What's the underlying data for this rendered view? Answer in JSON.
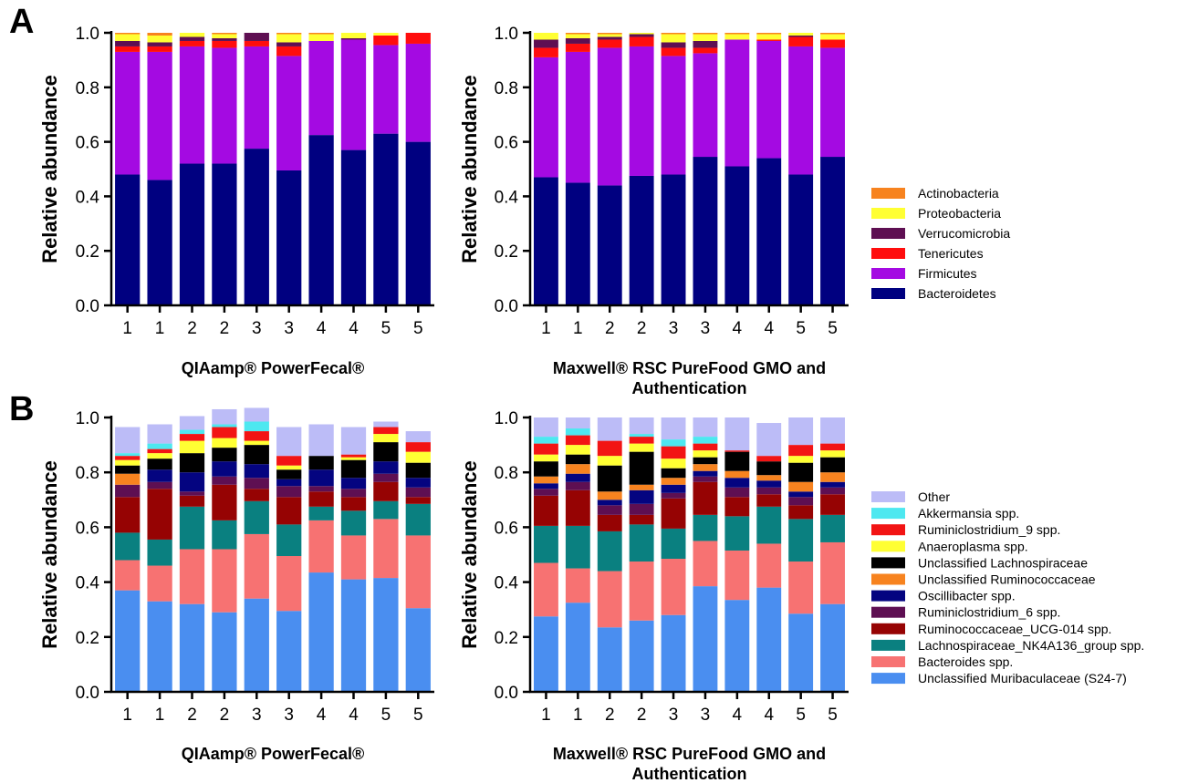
{
  "panels": [
    {
      "letter": "A",
      "legend": {
        "items": [
          {
            "label": "Actinobacteria",
            "color": "#f7831f"
          },
          {
            "label": "Proteobacteria",
            "color": "#ffff33"
          },
          {
            "label": "Verrucomicrobia",
            "color": "#5e0f52"
          },
          {
            "label": "Tenericutes",
            "color": "#ff0d0d"
          },
          {
            "label": "Firmicutes",
            "color": "#a40ae2"
          },
          {
            "label": "Bacteroidetes",
            "color": "#000080"
          }
        ]
      }
    },
    {
      "letter": "B",
      "legend": {
        "items": [
          {
            "label": "Other",
            "color": "#bcbcf7"
          },
          {
            "label": "Akkermansia spp.",
            "color": "#4de8f0"
          },
          {
            "label": "Ruminiclostridium_9 spp.",
            "color": "#f21414"
          },
          {
            "label": "Anaeroplasma spp.",
            "color": "#ffff33"
          },
          {
            "label": "Unclassified Lachnospiraceae",
            "color": "#000000"
          },
          {
            "label": "Unclassified Ruminococcaceae",
            "color": "#f7831f"
          },
          {
            "label": "Oscillibacter spp.",
            "color": "#040480"
          },
          {
            "label": "Ruminiclostridium_6 spp.",
            "color": "#5e0f52"
          },
          {
            "label": "Ruminococcaceae_UCG-014 spp.",
            "color": "#960303"
          },
          {
            "label": "Lachnospiraceae_NK4A136_group spp.",
            "color": "#0a8080"
          },
          {
            "label": "Bacteroides spp.",
            "color": "#f77272"
          },
          {
            "label": "Unclassified Muribaculaceae (S24-7)",
            "color": "#4a8ef0"
          }
        ]
      }
    }
  ],
  "chart_data": [
    {
      "type": "bar",
      "stacked": true,
      "panel": 0,
      "title": "",
      "xlabel": "QIAamp® PowerFecal®",
      "ylabel": "Relative abundance",
      "ylim": [
        0,
        1.0
      ],
      "yticks": [
        "0.0",
        "0.2",
        "0.4",
        "0.6",
        "0.8",
        "1.0"
      ],
      "categories": [
        "1",
        "1",
        "2",
        "2",
        "3",
        "3",
        "4",
        "4",
        "5",
        "5"
      ],
      "series": [
        {
          "name": "Bacteroidetes",
          "values": [
            0.48,
            0.46,
            0.52,
            0.52,
            0.575,
            0.495,
            0.625,
            0.57,
            0.63,
            0.6
          ]
        },
        {
          "name": "Firmicutes",
          "values": [
            0.45,
            0.47,
            0.43,
            0.425,
            0.375,
            0.42,
            0.345,
            0.405,
            0.325,
            0.36
          ]
        },
        {
          "name": "Tenericutes",
          "values": [
            0.02,
            0.02,
            0.02,
            0.025,
            0.02,
            0.035,
            0.0,
            0.0,
            0.035,
            0.04
          ]
        },
        {
          "name": "Verrucomicrobia",
          "values": [
            0.02,
            0.015,
            0.015,
            0.01,
            0.03,
            0.015,
            0.0,
            0.005,
            0.0,
            0.0
          ]
        },
        {
          "name": "Proteobacteria",
          "values": [
            0.025,
            0.025,
            0.015,
            0.015,
            0.0,
            0.03,
            0.025,
            0.02,
            0.01,
            0.0
          ]
        },
        {
          "name": "Actinobacteria",
          "values": [
            0.005,
            0.01,
            0.0,
            0.005,
            0.0,
            0.005,
            0.005,
            0.0,
            0.0,
            0.0
          ]
        }
      ]
    },
    {
      "type": "bar",
      "stacked": true,
      "panel": 0,
      "title": "",
      "xlabel": "Maxwell® RSC PureFood GMO and Authentication",
      "xlabel_lines": [
        "Maxwell® RSC PureFood GMO and",
        "Authentication"
      ],
      "ylabel": "Relative abundance",
      "ylim": [
        0,
        1.0
      ],
      "yticks": [
        "0.0",
        "0.2",
        "0.4",
        "0.6",
        "0.8",
        "1.0"
      ],
      "categories": [
        "1",
        "1",
        "2",
        "2",
        "3",
        "3",
        "4",
        "4",
        "5",
        "5"
      ],
      "series": [
        {
          "name": "Bacteroidetes",
          "values": [
            0.47,
            0.45,
            0.44,
            0.475,
            0.48,
            0.545,
            0.51,
            0.54,
            0.48,
            0.545
          ]
        },
        {
          "name": "Firmicutes",
          "values": [
            0.44,
            0.48,
            0.505,
            0.475,
            0.435,
            0.38,
            0.465,
            0.43,
            0.47,
            0.4
          ]
        },
        {
          "name": "Tenericutes",
          "values": [
            0.035,
            0.03,
            0.03,
            0.035,
            0.03,
            0.02,
            0.0,
            0.005,
            0.035,
            0.03
          ]
        },
        {
          "name": "Verrucomicrobia",
          "values": [
            0.03,
            0.02,
            0.01,
            0.01,
            0.02,
            0.025,
            0.0,
            0.0,
            0.005,
            0.0
          ]
        },
        {
          "name": "Proteobacteria",
          "values": [
            0.025,
            0.015,
            0.01,
            0.005,
            0.03,
            0.025,
            0.02,
            0.02,
            0.01,
            0.02
          ]
        },
        {
          "name": "Actinobacteria",
          "values": [
            0.0,
            0.005,
            0.005,
            0.0,
            0.005,
            0.005,
            0.005,
            0.005,
            0.0,
            0.005
          ]
        }
      ]
    },
    {
      "type": "bar",
      "stacked": true,
      "panel": 1,
      "title": "",
      "xlabel": "QIAamp® PowerFecal®",
      "ylabel": "Relative abundance",
      "ylim": [
        0,
        1.0
      ],
      "yticks": [
        "0.0",
        "0.2",
        "0.4",
        "0.6",
        "0.8",
        "1.0"
      ],
      "categories": [
        "1",
        "1",
        "2",
        "2",
        "3",
        "3",
        "4",
        "4",
        "5",
        "5"
      ],
      "series": [
        {
          "name": "Unclassified Muribaculaceae (S24-7)",
          "values": [
            0.37,
            0.33,
            0.32,
            0.29,
            0.34,
            0.295,
            0.435,
            0.41,
            0.415,
            0.305
          ]
        },
        {
          "name": "Bacteroides spp.",
          "values": [
            0.11,
            0.13,
            0.2,
            0.23,
            0.235,
            0.2,
            0.19,
            0.16,
            0.215,
            0.265
          ]
        },
        {
          "name": "Lachnospiraceae_NK4A136_group spp.",
          "values": [
            0.1,
            0.095,
            0.155,
            0.105,
            0.12,
            0.115,
            0.05,
            0.09,
            0.065,
            0.115
          ]
        },
        {
          "name": "Ruminococcaceae_UCG-014 spp.",
          "values": [
            0.13,
            0.185,
            0.04,
            0.13,
            0.045,
            0.1,
            0.055,
            0.05,
            0.07,
            0.025
          ]
        },
        {
          "name": "Ruminiclostridium_6 spp.",
          "values": [
            0.045,
            0.025,
            0.015,
            0.03,
            0.04,
            0.04,
            0.02,
            0.03,
            0.03,
            0.035
          ]
        },
        {
          "name": "Oscillibacter spp.",
          "values": [
            0.0,
            0.045,
            0.07,
            0.055,
            0.05,
            0.025,
            0.06,
            0.04,
            0.045,
            0.035
          ]
        },
        {
          "name": "Unclassified Ruminococcaceae",
          "values": [
            0.04,
            0.0,
            0.0,
            0.0,
            0.0,
            0.0,
            0.0,
            0.0,
            0.0,
            0.0
          ]
        },
        {
          "name": "Unclassified Lachnospiraceae",
          "values": [
            0.03,
            0.04,
            0.07,
            0.05,
            0.07,
            0.035,
            0.05,
            0.065,
            0.07,
            0.055
          ]
        },
        {
          "name": "Anaeroplasma spp.",
          "values": [
            0.02,
            0.02,
            0.045,
            0.035,
            0.015,
            0.015,
            0.0,
            0.01,
            0.03,
            0.04
          ]
        },
        {
          "name": "Ruminiclostridium_9 spp.",
          "values": [
            0.015,
            0.015,
            0.025,
            0.04,
            0.035,
            0.035,
            0.0,
            0.01,
            0.025,
            0.035
          ]
        },
        {
          "name": "Akkermansia spp.",
          "values": [
            0.01,
            0.02,
            0.015,
            0.01,
            0.035,
            0.0,
            0.0,
            0.0,
            0.0,
            0.0
          ]
        },
        {
          "name": "Other",
          "values": [
            0.095,
            0.07,
            0.05,
            0.055,
            0.05,
            0.105,
            0.115,
            0.1,
            0.02,
            0.04
          ]
        }
      ]
    },
    {
      "type": "bar",
      "stacked": true,
      "panel": 1,
      "title": "",
      "xlabel": "Maxwell® RSC PureFood GMO and Authentication",
      "xlabel_lines": [
        "Maxwell® RSC PureFood GMO and",
        "Authentication"
      ],
      "ylabel": "Relative abundance",
      "ylim": [
        0,
        1.0
      ],
      "yticks": [
        "0.0",
        "0.2",
        "0.4",
        "0.6",
        "0.8",
        "1.0"
      ],
      "categories": [
        "1",
        "1",
        "2",
        "2",
        "3",
        "3",
        "4",
        "4",
        "5",
        "5"
      ],
      "series": [
        {
          "name": "Unclassified Muribaculaceae (S24-7)",
          "values": [
            0.275,
            0.325,
            0.235,
            0.26,
            0.28,
            0.385,
            0.335,
            0.38,
            0.285,
            0.32
          ]
        },
        {
          "name": "Bacteroides spp.",
          "values": [
            0.195,
            0.125,
            0.205,
            0.215,
            0.205,
            0.165,
            0.18,
            0.16,
            0.19,
            0.225
          ]
        },
        {
          "name": "Lachnospiraceae_NK4A136_group spp.",
          "values": [
            0.135,
            0.155,
            0.145,
            0.135,
            0.11,
            0.095,
            0.125,
            0.135,
            0.155,
            0.1
          ]
        },
        {
          "name": "Ruminococcaceae_UCG-014 spp.",
          "values": [
            0.11,
            0.13,
            0.06,
            0.035,
            0.11,
            0.12,
            0.07,
            0.045,
            0.05,
            0.075
          ]
        },
        {
          "name": "Ruminiclostridium_6 spp.",
          "values": [
            0.025,
            0.03,
            0.035,
            0.04,
            0.02,
            0.02,
            0.035,
            0.025,
            0.03,
            0.025
          ]
        },
        {
          "name": "Oscillibacter spp.",
          "values": [
            0.02,
            0.03,
            0.02,
            0.05,
            0.03,
            0.02,
            0.035,
            0.025,
            0.02,
            0.02
          ]
        },
        {
          "name": "Unclassified Ruminococcaceae",
          "values": [
            0.025,
            0.035,
            0.03,
            0.02,
            0.025,
            0.025,
            0.025,
            0.02,
            0.035,
            0.035
          ]
        },
        {
          "name": "Unclassified Lachnospiraceae",
          "values": [
            0.055,
            0.035,
            0.095,
            0.12,
            0.035,
            0.025,
            0.07,
            0.05,
            0.07,
            0.055
          ]
        },
        {
          "name": "Anaeroplasma spp.",
          "values": [
            0.025,
            0.035,
            0.035,
            0.03,
            0.035,
            0.025,
            0.0,
            0.0,
            0.025,
            0.025
          ]
        },
        {
          "name": "Ruminiclostridium_9 spp.",
          "values": [
            0.04,
            0.035,
            0.055,
            0.025,
            0.045,
            0.025,
            0.005,
            0.02,
            0.04,
            0.025
          ]
        },
        {
          "name": "Akkermansia spp.",
          "values": [
            0.025,
            0.025,
            0.0,
            0.01,
            0.025,
            0.025,
            0.0,
            0.0,
            0.0,
            0.0
          ]
        },
        {
          "name": "Other",
          "values": [
            0.07,
            0.04,
            0.085,
            0.06,
            0.08,
            0.07,
            0.12,
            0.12,
            0.1,
            0.095
          ]
        }
      ]
    }
  ]
}
